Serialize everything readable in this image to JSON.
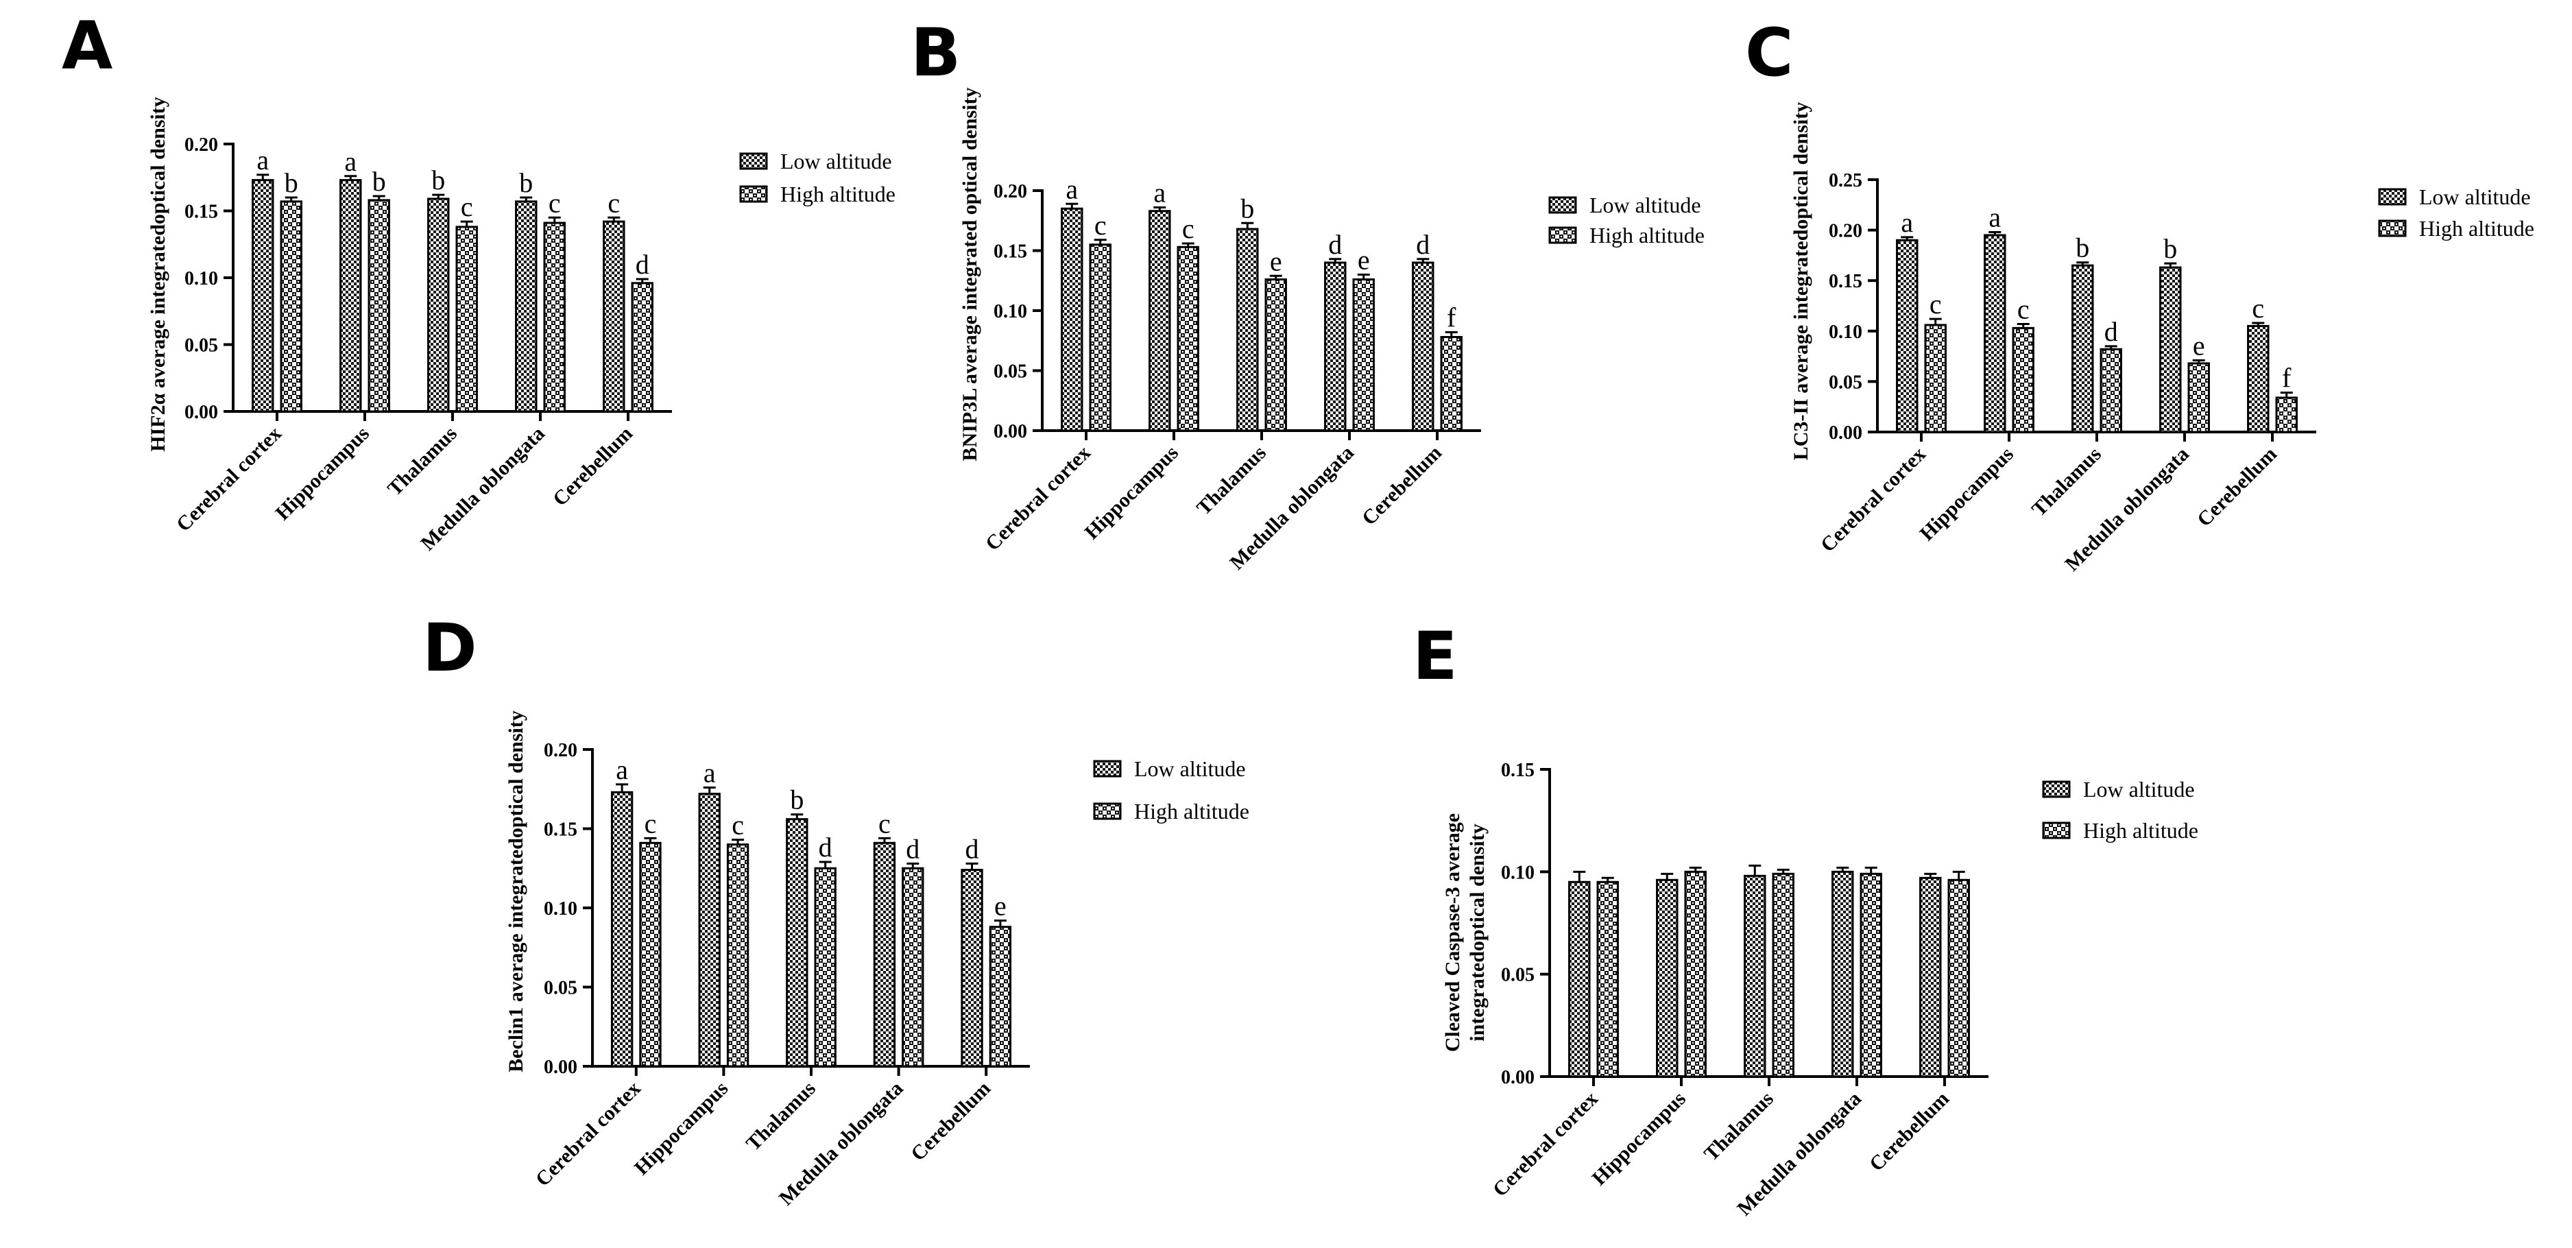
{
  "legend": {
    "low_label": "Low altitude",
    "high_label": "High altitude"
  },
  "categories": [
    "Cerebral cortex",
    "Hippocampus",
    "Thalamus",
    "Medulla oblongata",
    "Cerebellum"
  ],
  "chart_data": [
    {
      "panel": "A",
      "type": "bar",
      "categories": [
        "Cerebral cortex",
        "Hippocampus",
        "Thalamus",
        "Medulla oblongata",
        "Cerebellum"
      ],
      "ylabel": "HIF2α average integratedoptical density",
      "ylim": [
        0,
        0.2
      ],
      "yticks": [
        "0.00",
        "0.05",
        "0.10",
        "0.15",
        "0.20"
      ],
      "legend_position": "top-right",
      "series": [
        {
          "name": "Low altitude",
          "values": [
            0.173,
            0.173,
            0.159,
            0.157,
            0.142
          ],
          "errors": [
            0.004,
            0.003,
            0.003,
            0.003,
            0.003
          ],
          "sig": [
            "a",
            "a",
            "b",
            "b",
            "c"
          ]
        },
        {
          "name": "High altitude",
          "values": [
            0.157,
            0.158,
            0.138,
            0.141,
            0.096
          ],
          "errors": [
            0.003,
            0.003,
            0.004,
            0.004,
            0.003
          ],
          "sig": [
            "b",
            "b",
            "c",
            "c",
            "d"
          ]
        }
      ]
    },
    {
      "panel": "B",
      "type": "bar",
      "categories": [
        "Cerebral cortex",
        "Hippocampus",
        "Thalamus",
        "Medulla oblongata",
        "Cerebellum"
      ],
      "ylabel": "BNIP3L average integrated optical density",
      "ylim": [
        0,
        0.2
      ],
      "yticks": [
        "0.00",
        "0.05",
        "0.10",
        "0.15",
        "0.20"
      ],
      "legend_position": "top-right",
      "series": [
        {
          "name": "Low altitude",
          "values": [
            0.185,
            0.183,
            0.168,
            0.14,
            0.14
          ],
          "errors": [
            0.004,
            0.003,
            0.005,
            0.003,
            0.003
          ],
          "sig": [
            "a",
            "a",
            "b",
            "d",
            "d"
          ]
        },
        {
          "name": "High altitude",
          "values": [
            0.155,
            0.153,
            0.126,
            0.126,
            0.078
          ],
          "errors": [
            0.004,
            0.003,
            0.003,
            0.004,
            0.004
          ],
          "sig": [
            "c",
            "c",
            "e",
            "e",
            "f"
          ]
        }
      ]
    },
    {
      "panel": "C",
      "type": "bar",
      "categories": [
        "Cerebral cortex",
        "Hippocampus",
        "Thalamus",
        "Medulla oblongata",
        "Cerebellum"
      ],
      "ylabel": "LC3-II average integratedoptical density",
      "ylim": [
        0,
        0.25
      ],
      "yticks": [
        "0.00",
        "0.05",
        "0.10",
        "0.15",
        "0.20",
        "0.25"
      ],
      "legend_position": "top-right",
      "series": [
        {
          "name": "Low altitude",
          "values": [
            0.19,
            0.195,
            0.165,
            0.163,
            0.105
          ],
          "errors": [
            0.003,
            0.003,
            0.003,
            0.004,
            0.003
          ],
          "sig": [
            "a",
            "a",
            "b",
            "b",
            "c"
          ]
        },
        {
          "name": "High altitude",
          "values": [
            0.106,
            0.103,
            0.082,
            0.068,
            0.034
          ],
          "errors": [
            0.006,
            0.004,
            0.003,
            0.003,
            0.005
          ],
          "sig": [
            "c",
            "c",
            "d",
            "e",
            "f"
          ]
        }
      ]
    },
    {
      "panel": "D",
      "type": "bar",
      "categories": [
        "Cerebral cortex",
        "Hippocampus",
        "Thalamus",
        "Medulla oblongata",
        "Cerebellum"
      ],
      "ylabel": "Beclin1 average integratedoptical density",
      "ylim": [
        0,
        0.2
      ],
      "yticks": [
        "0.00",
        "0.05",
        "0.10",
        "0.15",
        "0.20"
      ],
      "legend_position": "top-right",
      "series": [
        {
          "name": "Low altitude",
          "values": [
            0.173,
            0.172,
            0.156,
            0.141,
            0.124
          ],
          "errors": [
            0.005,
            0.004,
            0.003,
            0.003,
            0.004
          ],
          "sig": [
            "a",
            "a",
            "b",
            "c",
            "d"
          ]
        },
        {
          "name": "High altitude",
          "values": [
            0.141,
            0.14,
            0.125,
            0.125,
            0.088
          ],
          "errors": [
            0.003,
            0.003,
            0.004,
            0.003,
            0.004
          ],
          "sig": [
            "c",
            "c",
            "d",
            "d",
            "e"
          ]
        }
      ]
    },
    {
      "panel": "E",
      "type": "bar",
      "categories": [
        "Cerebral cortex",
        "Hippocampus",
        "Thalamus",
        "Medulla oblongata",
        "Cerebellum"
      ],
      "ylabel": [
        "Cleaved Caspase-3 average",
        "integratedoptical density"
      ],
      "ylim": [
        0,
        0.15
      ],
      "yticks": [
        "0.00",
        "0.05",
        "0.10",
        "0.15"
      ],
      "legend_position": "top-right",
      "series": [
        {
          "name": "Low altitude",
          "values": [
            0.095,
            0.096,
            0.098,
            0.1,
            0.097
          ],
          "errors": [
            0.005,
            0.003,
            0.005,
            0.002,
            0.002
          ],
          "sig": [
            "",
            "",
            "",
            "",
            ""
          ]
        },
        {
          "name": "High altitude",
          "values": [
            0.095,
            0.1,
            0.099,
            0.099,
            0.096
          ],
          "errors": [
            0.002,
            0.002,
            0.002,
            0.003,
            0.004
          ],
          "sig": [
            "",
            "",
            "",
            "",
            ""
          ]
        }
      ]
    }
  ]
}
